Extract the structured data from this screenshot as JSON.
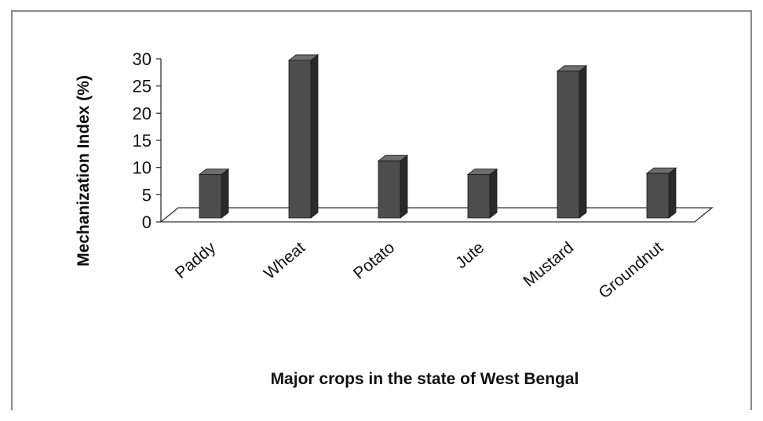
{
  "chart_data": {
    "type": "bar",
    "style": "3d-column",
    "title": "",
    "xlabel": "Major crops in the state of West Bengal",
    "ylabel": "Mechanization Index (%)",
    "ylim": [
      0,
      30
    ],
    "yticks": [
      0,
      5,
      10,
      15,
      20,
      25,
      30
    ],
    "categories": [
      "Paddy",
      "Wheat",
      "Potato",
      "Jute",
      "Mustard",
      "Groundnut"
    ],
    "values": [
      8,
      29,
      10.5,
      8,
      27,
      8.2
    ],
    "grid": false,
    "legend": "none",
    "colors": {
      "bar_front": "#4d4d4d",
      "bar_side": "#2a2a2a",
      "bar_top": "#6e6e6e",
      "floor": "#ffffff",
      "floor_edge": "#333333",
      "frame": "#8a8a8a"
    }
  }
}
